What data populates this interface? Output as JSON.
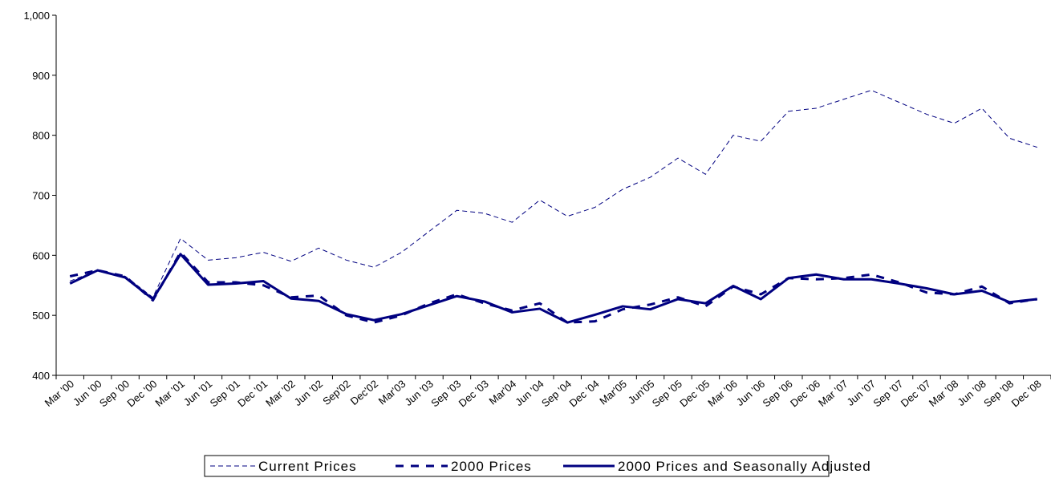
{
  "chart_data": {
    "type": "line",
    "categories": [
      "Mar '00",
      "Jun '00",
      "Sep '00",
      "Dec '00",
      "Mar '01",
      "Jun '01",
      "Sep '01",
      "Dec '01",
      "Mar '02",
      "Jun '02",
      "Sep'02",
      "Dec'02",
      "Mar'03",
      "Jun '03",
      "Sep '03",
      "Dec '03",
      "Mar'04",
      "Jun '04",
      "Sep '04",
      "Dec '04",
      "Mar'05",
      "Jun'05",
      "Sep '05",
      "Dec '05",
      "Mar '06",
      "Jun '06",
      "Sep '06",
      "Dec '06",
      "Mar '07",
      "Jun '07",
      "Sep '07",
      "Dec '07",
      "Mar '08",
      "Jun '08",
      "Sep '08",
      "Dec '08"
    ],
    "series": [
      {
        "name": "Current Prices",
        "color": "#000080",
        "values": [
          557,
          575,
          565,
          530,
          628,
          592,
          596,
          605,
          590,
          612,
          592,
          580,
          605,
          640,
          675,
          670,
          655,
          692,
          665,
          680,
          710,
          730,
          762,
          735,
          800,
          790,
          840,
          845,
          860,
          875,
          855,
          835,
          820,
          845,
          795,
          780
        ]
      },
      {
        "name": "2000 Prices",
        "color": "#000080",
        "values": [
          565,
          575,
          565,
          525,
          605,
          555,
          555,
          550,
          530,
          533,
          500,
          488,
          500,
          520,
          535,
          520,
          508,
          520,
          488,
          490,
          510,
          518,
          530,
          515,
          548,
          535,
          562,
          560,
          562,
          568,
          555,
          538,
          535,
          548,
          520,
          527
        ]
      },
      {
        "name": "2000 Prices and Seasonally Adjusted",
        "color": "#000080",
        "values": [
          553,
          575,
          563,
          527,
          602,
          551,
          553,
          557,
          528,
          524,
          502,
          492,
          502,
          517,
          532,
          523,
          505,
          511,
          488,
          501,
          515,
          510,
          527,
          520,
          549,
          527,
          562,
          568,
          560,
          560,
          553,
          545,
          535,
          541,
          522,
          527
        ]
      }
    ],
    "ylim": [
      400,
      1000
    ],
    "yticks": [
      400,
      500,
      600,
      700,
      800,
      900,
      {
        "value": 1000,
        "label": "1,000"
      }
    ],
    "grid": false,
    "legend": "bottom"
  }
}
